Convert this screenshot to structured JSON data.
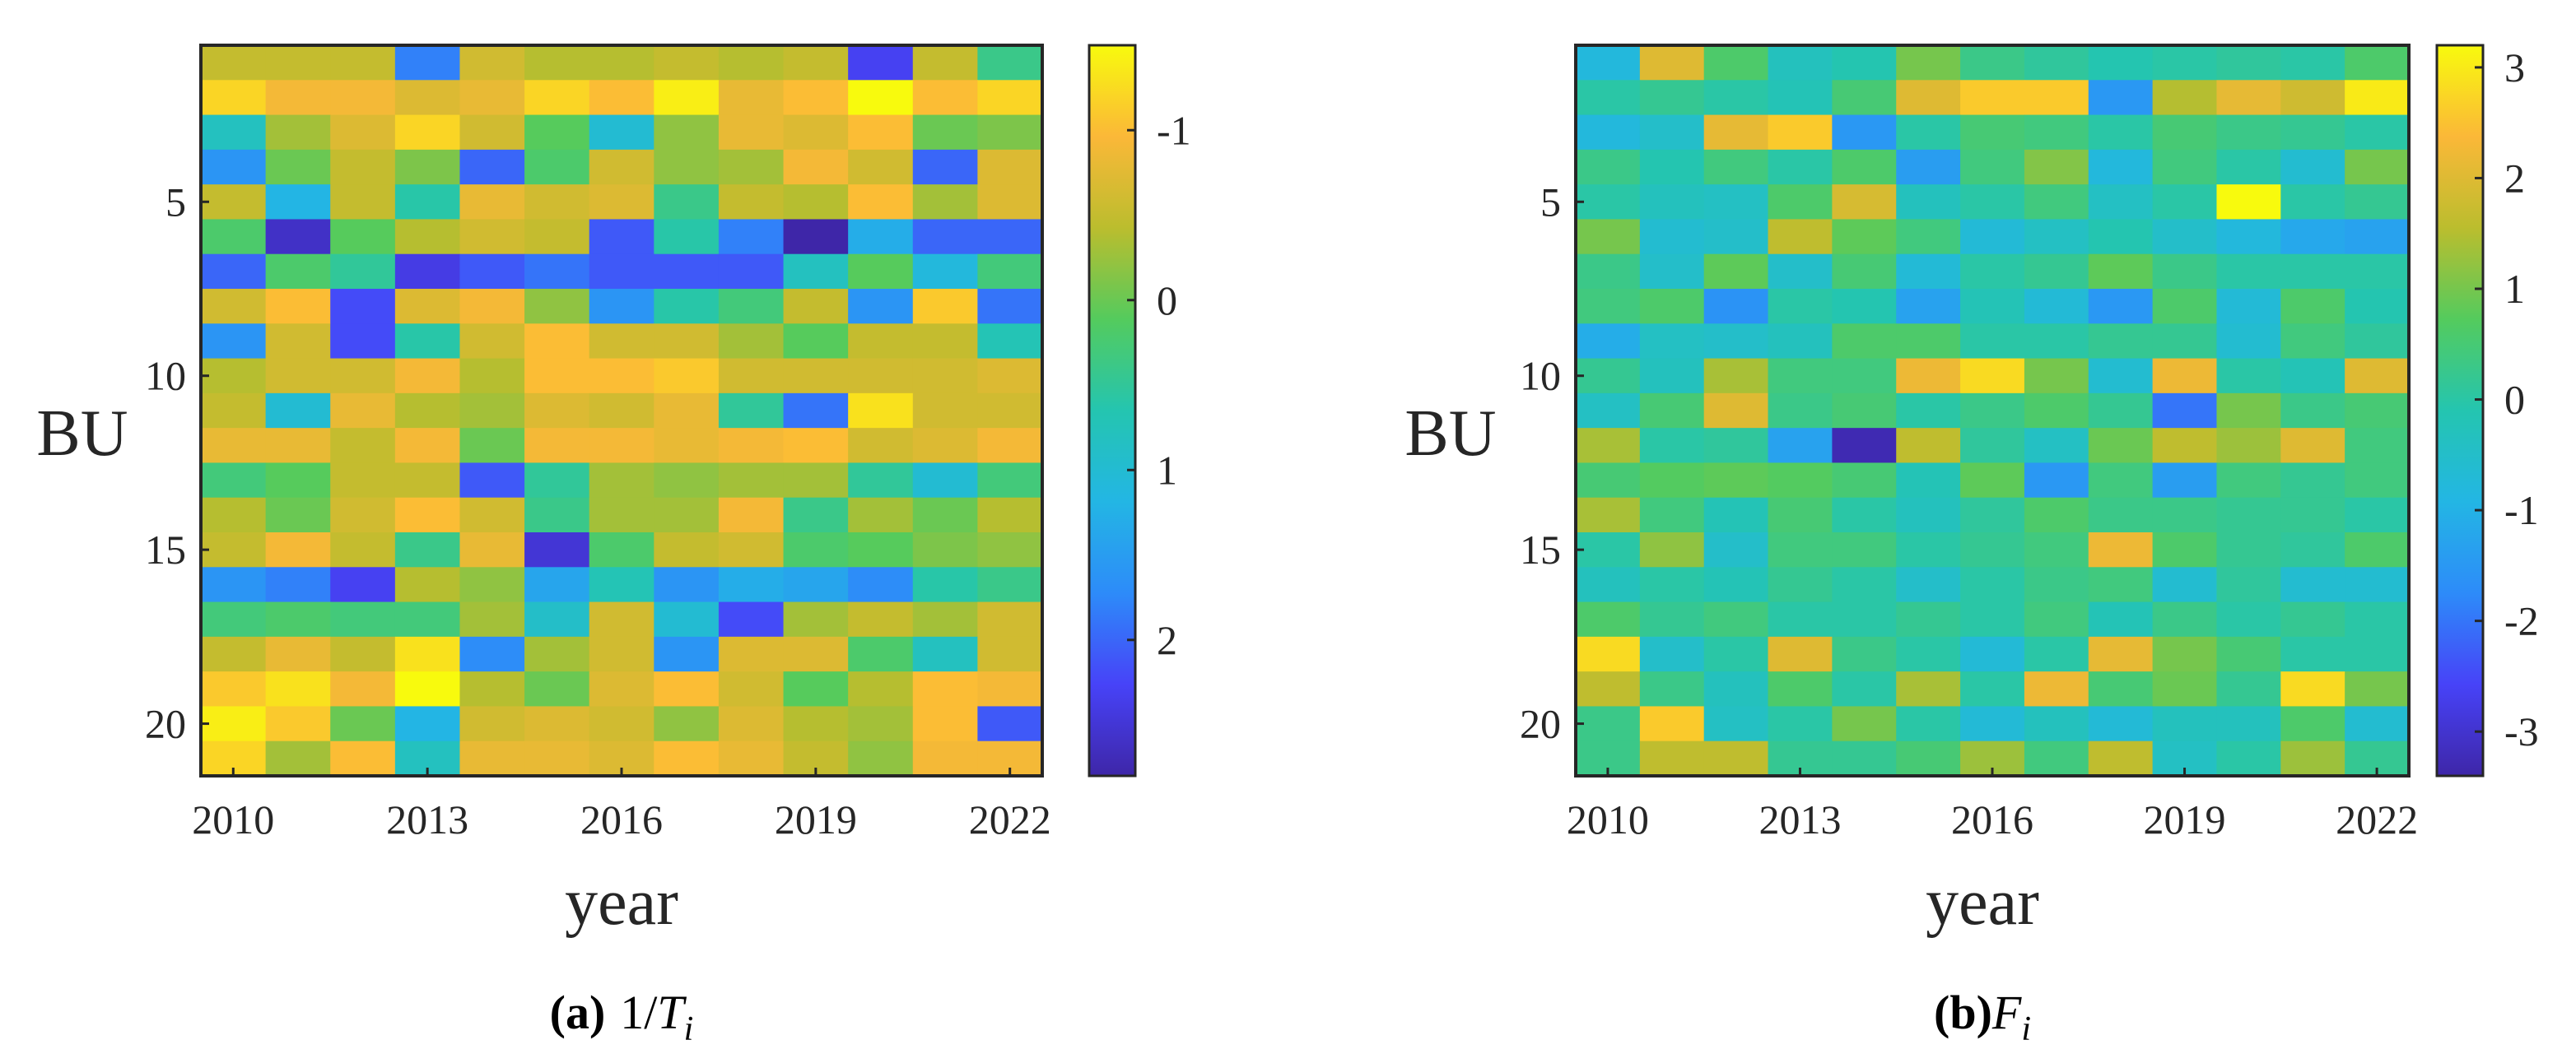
{
  "chart_data": [
    {
      "type": "heatmap",
      "panel_tag": "(a)",
      "caption_math": {
        "numerator": "1/",
        "symbol": "T",
        "subscript": "i"
      },
      "xlabel": "year",
      "ylabel": "BU",
      "x": [
        2010,
        2011,
        2012,
        2013,
        2014,
        2015,
        2016,
        2017,
        2018,
        2019,
        2020,
        2021,
        2022
      ],
      "xticks": [
        "2010",
        "2013",
        "2016",
        "2019",
        "2022"
      ],
      "xtick_values": [
        2010,
        2013,
        2016,
        2019,
        2022
      ],
      "y": [
        1,
        2,
        3,
        4,
        5,
        6,
        7,
        8,
        9,
        10,
        11,
        12,
        13,
        14,
        15,
        16,
        17,
        18,
        19,
        20,
        21
      ],
      "yticks": [
        "5",
        "10",
        "15",
        "20"
      ],
      "ytick_values": [
        5,
        10,
        15,
        20
      ],
      "colorbar": {
        "min": -1.5,
        "max": 2.8,
        "reversed": true,
        "ticks": [
          "-1",
          "0",
          "1",
          "2"
        ],
        "tick_values": [
          -1,
          0,
          1,
          2
        ]
      },
      "colormap": [
        "#3e26a8",
        "#4743f8",
        "#2d8bf9",
        "#23b6e4",
        "#24c5b0",
        "#54cb5d",
        "#bbbd2e",
        "#fbb838",
        "#f8fa0d"
      ],
      "values": [
        [
          -0.5,
          -0.5,
          -0.5,
          1.8,
          -0.6,
          -0.4,
          -0.4,
          -0.5,
          -0.4,
          -0.5,
          2.3,
          -0.5,
          0.4
        ],
        [
          -1.2,
          -0.9,
          -0.9,
          -0.7,
          -0.8,
          -1.2,
          -1.0,
          -1.4,
          -0.8,
          -1.0,
          -1.6,
          -1.0,
          -1.2
        ],
        [
          0.8,
          -0.3,
          -0.7,
          -1.2,
          -0.6,
          0.1,
          1.0,
          -0.2,
          -0.8,
          -0.7,
          -1.0,
          0.0,
          -0.1
        ],
        [
          1.6,
          0.0,
          -0.5,
          -0.1,
          2.0,
          0.2,
          -0.6,
          -0.2,
          -0.3,
          -0.9,
          -0.6,
          2.0,
          -0.7
        ],
        [
          -0.5,
          1.2,
          -0.5,
          0.6,
          -0.8,
          -0.6,
          -0.7,
          0.4,
          -0.5,
          -0.4,
          -1.0,
          -0.3,
          -0.7
        ],
        [
          0.2,
          2.6,
          0.1,
          -0.4,
          -0.6,
          -0.5,
          2.1,
          0.6,
          1.8,
          2.8,
          1.3,
          2.0,
          2.0
        ],
        [
          2.0,
          0.2,
          0.5,
          2.4,
          2.1,
          1.9,
          2.1,
          2.1,
          2.1,
          0.8,
          0.1,
          1.1,
          0.3
        ],
        [
          -0.6,
          -1.0,
          2.2,
          -0.7,
          -0.9,
          -0.2,
          1.6,
          0.6,
          0.3,
          -0.5,
          1.6,
          -1.1,
          1.9
        ],
        [
          1.6,
          -0.6,
          2.2,
          0.6,
          -0.6,
          -1.0,
          -0.6,
          -0.6,
          -0.3,
          0.1,
          -0.5,
          -0.5,
          0.7
        ],
        [
          -0.4,
          -0.6,
          -0.6,
          -0.9,
          -0.4,
          -1.0,
          -1.0,
          -1.1,
          -0.6,
          -0.6,
          -0.6,
          -0.6,
          -0.7
        ],
        [
          -0.5,
          1.0,
          -0.8,
          -0.4,
          -0.3,
          -0.7,
          -0.6,
          -0.8,
          0.5,
          1.9,
          -1.3,
          -0.6,
          -0.6
        ],
        [
          -0.8,
          -0.8,
          -0.5,
          -0.9,
          0.0,
          -0.9,
          -0.9,
          -0.8,
          -0.9,
          -1.0,
          -0.6,
          -0.7,
          -0.9
        ],
        [
          0.3,
          0.1,
          -0.5,
          -0.5,
          2.1,
          0.5,
          -0.3,
          -0.2,
          -0.3,
          -0.3,
          0.5,
          1.0,
          0.3
        ],
        [
          -0.4,
          0.0,
          -0.6,
          -1.0,
          -0.6,
          0.4,
          -0.3,
          -0.3,
          -0.9,
          0.4,
          -0.3,
          0.0,
          -0.4
        ],
        [
          -0.5,
          -0.9,
          -0.5,
          0.4,
          -0.8,
          2.5,
          0.2,
          -0.5,
          -0.6,
          0.2,
          0.1,
          -0.1,
          -0.2
        ],
        [
          1.6,
          1.8,
          2.3,
          -0.4,
          -0.2,
          1.4,
          0.7,
          1.6,
          1.3,
          1.4,
          1.7,
          0.6,
          0.4
        ],
        [
          0.3,
          0.2,
          0.3,
          0.3,
          -0.3,
          0.9,
          -0.6,
          1.0,
          2.2,
          -0.3,
          -0.5,
          -0.3,
          -0.6
        ],
        [
          -0.5,
          -0.8,
          -0.5,
          -1.3,
          1.7,
          -0.3,
          -0.6,
          1.6,
          -0.7,
          -0.7,
          0.2,
          0.8,
          -0.6
        ],
        [
          -1.1,
          -1.3,
          -0.9,
          -1.6,
          -0.4,
          0.0,
          -0.7,
          -1.0,
          -0.6,
          0.1,
          -0.4,
          -1.0,
          -0.9
        ],
        [
          -1.4,
          -1.1,
          0.0,
          1.2,
          -0.6,
          -0.7,
          -0.6,
          -0.2,
          -0.7,
          -0.4,
          -0.3,
          -1.0,
          2.1
        ],
        [
          -1.2,
          -0.3,
          -1.0,
          0.8,
          -0.8,
          -0.8,
          -0.7,
          -1.0,
          -0.8,
          -0.5,
          -0.2,
          -0.9,
          -0.9
        ]
      ]
    },
    {
      "type": "heatmap",
      "panel_tag": "(b)",
      "caption_math": {
        "numerator": "",
        "symbol": "F",
        "subscript": "i"
      },
      "xlabel": "year",
      "ylabel": "BU",
      "x": [
        2010,
        2011,
        2012,
        2013,
        2014,
        2015,
        2016,
        2017,
        2018,
        2019,
        2020,
        2021,
        2022
      ],
      "xticks": [
        "2010",
        "2013",
        "2016",
        "2019",
        "2022"
      ],
      "xtick_values": [
        2010,
        2013,
        2016,
        2019,
        2022
      ],
      "y": [
        1,
        2,
        3,
        4,
        5,
        6,
        7,
        8,
        9,
        10,
        11,
        12,
        13,
        14,
        15,
        16,
        17,
        18,
        19,
        20,
        21
      ],
      "yticks": [
        "5",
        "10",
        "15",
        "20"
      ],
      "ytick_values": [
        5,
        10,
        15,
        20
      ],
      "colorbar": {
        "min": -3.4,
        "max": 3.2,
        "reversed": false,
        "ticks": [
          "3",
          "2",
          "1",
          "0",
          "-1",
          "-2",
          "-3"
        ],
        "tick_values": [
          3,
          2,
          1,
          0,
          -1,
          -2,
          -3
        ]
      },
      "colormap": [
        "#3e26a8",
        "#4743f8",
        "#2d8bf9",
        "#23b6e4",
        "#24c5b0",
        "#54cb5d",
        "#bbbd2e",
        "#fbb838",
        "#f8fa0d"
      ],
      "values": [
        [
          -0.8,
          2.0,
          0.6,
          -0.3,
          -0.1,
          1.0,
          0.3,
          0.1,
          -0.1,
          0.0,
          0.1,
          0.0,
          0.6
        ],
        [
          0.0,
          0.2,
          0.0,
          -0.2,
          0.5,
          2.0,
          2.6,
          2.6,
          -1.5,
          1.5,
          2.1,
          1.8,
          3.0
        ],
        [
          -0.8,
          -0.5,
          2.1,
          2.6,
          -1.5,
          0.0,
          0.5,
          0.4,
          0.0,
          0.5,
          0.3,
          0.2,
          0.0
        ],
        [
          0.3,
          -0.1,
          0.4,
          0.0,
          0.6,
          -1.4,
          0.4,
          1.1,
          -0.8,
          0.4,
          0.0,
          -0.6,
          1.0
        ],
        [
          0.0,
          -0.3,
          -0.4,
          0.6,
          1.9,
          -0.3,
          0.0,
          0.4,
          -0.4,
          0.0,
          3.2,
          0.0,
          0.2
        ],
        [
          1.0,
          -0.6,
          -0.5,
          1.6,
          0.8,
          0.4,
          -0.7,
          -0.4,
          -0.1,
          -0.5,
          -0.8,
          -1.2,
          -1.3
        ],
        [
          0.3,
          -0.5,
          0.8,
          -0.5,
          0.5,
          -0.7,
          0.0,
          0.2,
          0.8,
          0.3,
          0.0,
          0.0,
          0.0
        ],
        [
          0.4,
          0.6,
          -1.6,
          0.0,
          -0.1,
          -1.3,
          -0.2,
          -0.7,
          -1.5,
          0.6,
          -0.7,
          0.6,
          -0.1
        ],
        [
          -1.1,
          -0.4,
          -0.5,
          -0.3,
          0.6,
          0.6,
          0.0,
          0.0,
          0.2,
          0.2,
          -0.6,
          0.4,
          0.1
        ],
        [
          0.2,
          -0.3,
          1.4,
          0.4,
          0.4,
          2.2,
          2.8,
          1.0,
          -0.6,
          2.2,
          0.0,
          -0.2,
          2.0
        ],
        [
          -0.4,
          0.5,
          2.0,
          0.3,
          0.5,
          0.0,
          0.3,
          0.6,
          0.2,
          -2.0,
          1.0,
          0.3,
          0.5
        ],
        [
          1.4,
          0.0,
          0.1,
          -1.3,
          -3.3,
          1.6,
          0.1,
          -0.4,
          0.9,
          1.6,
          1.3,
          2.0,
          0.4
        ],
        [
          0.5,
          0.7,
          0.8,
          0.7,
          0.5,
          -0.2,
          0.8,
          -1.5,
          0.4,
          -1.4,
          0.4,
          0.2,
          0.4
        ],
        [
          1.4,
          0.4,
          -0.2,
          0.5,
          0.0,
          -0.3,
          0.1,
          0.6,
          0.3,
          0.3,
          0.2,
          0.2,
          0.0
        ],
        [
          0.0,
          1.2,
          -0.5,
          0.4,
          0.4,
          0.0,
          0.2,
          0.4,
          2.2,
          0.6,
          0.2,
          0.1,
          0.6
        ],
        [
          -0.3,
          0.0,
          -0.2,
          0.2,
          0.0,
          -0.5,
          0.0,
          0.3,
          0.4,
          -0.6,
          0.1,
          -0.6,
          -0.6
        ],
        [
          0.6,
          0.2,
          0.4,
          0.0,
          0.0,
          0.2,
          0.0,
          0.4,
          -0.2,
          0.3,
          0.0,
          0.2,
          0.0
        ],
        [
          2.8,
          -0.5,
          0.0,
          2.0,
          0.3,
          0.0,
          -0.7,
          0.0,
          2.1,
          1.0,
          0.5,
          0.0,
          0.0
        ],
        [
          1.6,
          0.3,
          -0.3,
          0.6,
          0.0,
          1.4,
          0.0,
          2.2,
          0.5,
          0.9,
          0.2,
          2.8,
          1.0
        ],
        [
          0.3,
          2.6,
          -0.4,
          0.0,
          1.0,
          0.0,
          -0.7,
          -0.3,
          -0.7,
          -0.3,
          -0.3,
          0.6,
          -0.6
        ],
        [
          0.3,
          1.6,
          1.6,
          0.2,
          0.2,
          0.5,
          1.3,
          0.4,
          1.6,
          -0.4,
          0.0,
          1.3,
          0.2
        ]
      ]
    }
  ]
}
